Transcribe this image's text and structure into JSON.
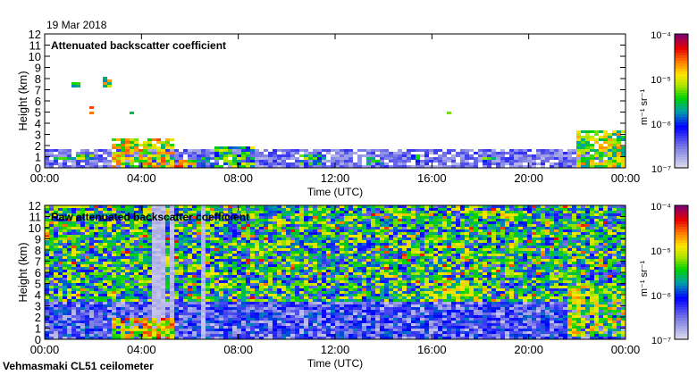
{
  "date": "19 Mar 2018",
  "footer": "Vehmasmaki CL51 ceilometer",
  "chart_data": [
    {
      "type": "heatmap",
      "title": "Attenuated backscatter coefficient",
      "xlabel": "Time (UTC)",
      "ylabel": "Height (km)",
      "xlim": [
        0,
        24
      ],
      "ylim": [
        0,
        12
      ],
      "xticks": [
        "00:00",
        "04:00",
        "08:00",
        "12:00",
        "16:00",
        "20:00",
        "00:00"
      ],
      "yticks": [
        "0",
        "1",
        "2",
        "3",
        "4",
        "5",
        "6",
        "7",
        "8",
        "9",
        "10",
        "11",
        "12"
      ],
      "background_layer_top_km": 1.7,
      "features": [
        {
          "t0": 0.2,
          "t1": 2.0,
          "h0": 0.8,
          "h1": 1.3,
          "level": 0.55
        },
        {
          "t0": 1.0,
          "t1": 1.4,
          "h0": 7.2,
          "h1": 7.8,
          "level": 0.6
        },
        {
          "t0": 1.6,
          "t1": 1.9,
          "h0": 5.0,
          "h1": 5.6,
          "level": 0.7
        },
        {
          "t0": 2.3,
          "t1": 2.6,
          "h0": 7.3,
          "h1": 8.3,
          "level": 0.65
        },
        {
          "t0": 3.5,
          "t1": 3.6,
          "h0": 5.0,
          "h1": 5.5,
          "level": 0.65
        },
        {
          "t0": 2.7,
          "t1": 5.3,
          "h0": 0,
          "h1": 2.8,
          "level": 0.7
        },
        {
          "t0": 5.2,
          "t1": 6.2,
          "h0": 0,
          "h1": 0.8,
          "level": 0.75
        },
        {
          "t0": 6.0,
          "t1": 7.0,
          "h0": 0.2,
          "h1": 1.2,
          "level": 0.4
        },
        {
          "t0": 7.0,
          "t1": 8.5,
          "h0": 0,
          "h1": 2.0,
          "level": 0.55
        },
        {
          "t0": 10.5,
          "t1": 11.5,
          "h0": 0.3,
          "h1": 1.3,
          "level": 0.5
        },
        {
          "t0": 13.2,
          "t1": 14.0,
          "h0": 0.3,
          "h1": 1.2,
          "level": 0.4
        },
        {
          "t0": 15.0,
          "t1": 15.4,
          "h0": 0.5,
          "h1": 1.3,
          "level": 0.5
        },
        {
          "t0": 16.5,
          "t1": 16.7,
          "h0": 4.8,
          "h1": 5.2,
          "level": 0.65
        },
        {
          "t0": 18.0,
          "t1": 18.6,
          "h0": 0.7,
          "h1": 1.2,
          "level": 0.55
        },
        {
          "t0": 21.3,
          "t1": 21.4,
          "h0": 3.8,
          "h1": 4.8,
          "level": 0.6
        },
        {
          "t0": 21.8,
          "t1": 24.0,
          "h0": 0,
          "h1": 3.5,
          "level": 0.65
        }
      ]
    },
    {
      "type": "heatmap",
      "title": "Raw attenuated backscatter coefficient",
      "xlabel": "Time (UTC)",
      "ylabel": "Height (km)",
      "xlim": [
        0,
        24
      ],
      "ylim": [
        0,
        12
      ],
      "xticks": [
        "00:00",
        "04:00",
        "08:00",
        "12:00",
        "16:00",
        "20:00",
        "00:00"
      ],
      "yticks": [
        "0",
        "1",
        "2",
        "3",
        "4",
        "5",
        "6",
        "7",
        "8",
        "9",
        "10",
        "11",
        "12"
      ],
      "features": [
        {
          "t0": 2.7,
          "t1": 5.3,
          "h0": 0,
          "h1": 2.0,
          "level": 0.75
        },
        {
          "t0": 16.0,
          "t1": 18.0,
          "h0": 3.5,
          "h1": 5.5,
          "level": 0.6
        },
        {
          "t0": 21.5,
          "t1": 24.0,
          "h0": 0.3,
          "h1": 5.0,
          "level": 0.65
        }
      ]
    }
  ],
  "colorbar": {
    "label": "m⁻¹ sr⁻¹",
    "ticks": [
      "10⁻⁷",
      "10⁻⁶",
      "10⁻⁵",
      "10⁻⁴"
    ],
    "range": [
      1e-07,
      0.0001
    ],
    "scale": "log"
  }
}
